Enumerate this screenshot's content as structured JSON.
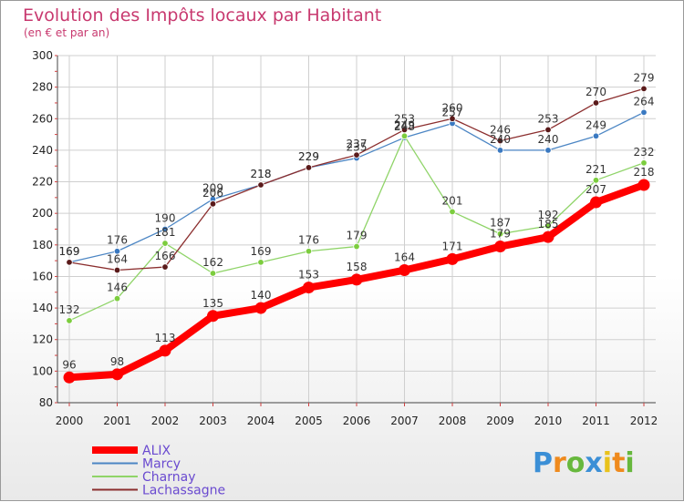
{
  "chart_data": {
    "type": "line",
    "title": "Evolution des Impôts locaux par Habitant",
    "subtitle": "(en € et par an)",
    "xlabel": "",
    "ylabel": "",
    "categories": [
      "2000",
      "2001",
      "2002",
      "2003",
      "2004",
      "2005",
      "2006",
      "2007",
      "2008",
      "2009",
      "2010",
      "2011",
      "2012"
    ],
    "ylim": [
      80,
      300
    ],
    "yticks": [
      80,
      100,
      120,
      140,
      160,
      180,
      200,
      220,
      240,
      260,
      280,
      300
    ],
    "grid": true,
    "legend_position": "bottom-left",
    "series": [
      {
        "name": "Marcy",
        "color": "#4c86c4",
        "marker": "#3a79c1",
        "values": [
          169,
          176,
          190,
          209,
          218,
          229,
          235,
          248,
          257,
          240,
          240,
          249,
          264
        ]
      },
      {
        "name": "Charnay",
        "color": "#8fd468",
        "marker": "#7ccd3e",
        "values": [
          132,
          146,
          181,
          162,
          169,
          176,
          179,
          249,
          201,
          187,
          192,
          221,
          232
        ]
      },
      {
        "name": "Lachassagne",
        "color": "#8b2e2e",
        "marker": "#5a1a1a",
        "values": [
          169,
          164,
          166,
          206,
          218,
          229,
          237,
          253,
          260,
          246,
          253,
          270,
          279
        ]
      },
      {
        "name": "ALIX",
        "color": "#ff0000",
        "marker": "#ff0000",
        "values": [
          96,
          98,
          113,
          135,
          140,
          153,
          158,
          164,
          171,
          179,
          185,
          207,
          218
        ]
      }
    ],
    "legend_order": [
      "ALIX",
      "Marcy",
      "Charnay",
      "Lachassagne"
    ],
    "data_label_texts": {
      "Marcy": [
        "169",
        "176",
        "190",
        "209",
        "218",
        "229",
        "235",
        "248",
        "257",
        "240",
        "240",
        "249",
        "264"
      ],
      "Charnay": [
        "132",
        "146",
        "181",
        "162",
        "169",
        "176",
        "179",
        "249",
        "201",
        "187",
        "192",
        "221",
        "232"
      ],
      "Lachassagne": [
        "169",
        "164",
        "166",
        "206",
        "218",
        "229",
        "237",
        "253",
        "260",
        "246",
        "253",
        "270",
        "279"
      ],
      "ALIX": [
        "96",
        "98",
        "113",
        "135",
        "140",
        "153",
        "158",
        "164",
        "171",
        "179",
        "185",
        "207",
        "218"
      ]
    }
  },
  "logo": {
    "letters": [
      "P",
      "r",
      "o",
      "x",
      "i",
      "t",
      "i"
    ],
    "colors": [
      "#3b8fd6",
      "#ef8a1d",
      "#67b83d",
      "#3b8fd6",
      "#e9c21b",
      "#ef8a1d",
      "#67b83d"
    ]
  }
}
